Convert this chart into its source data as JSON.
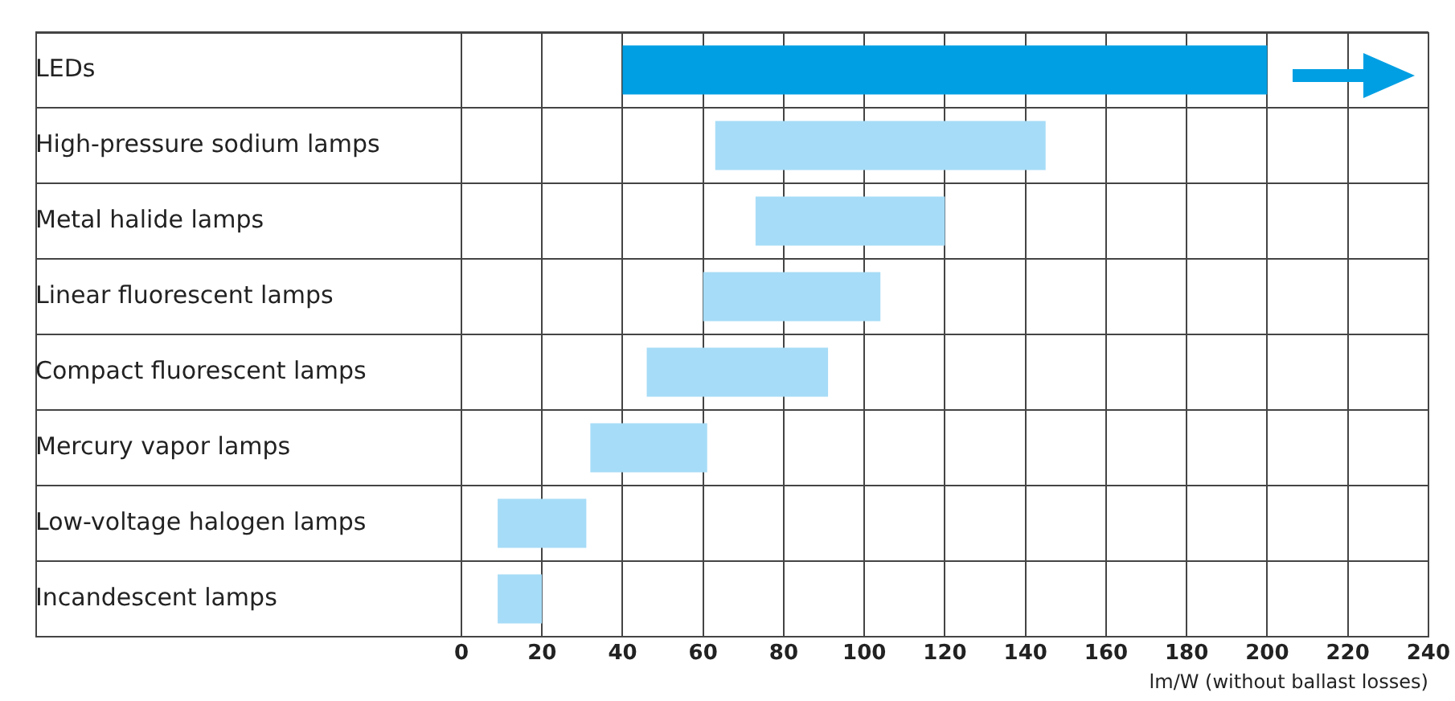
{
  "chart_data": {
    "type": "bar",
    "orientation": "horizontal",
    "xlabel": "lm/W (without ballast losses)",
    "categories": [
      "LEDs",
      "High-pressure sodium lamps",
      "Metal halide lamps",
      "Linear fluorescent lamps",
      "Compact fluorescent lamps",
      "Mercury vapor lamps",
      "Low-voltage halogen lamps",
      "Incandescent lamps"
    ],
    "base": [
      40,
      63,
      73,
      60,
      46,
      32,
      9,
      9
    ],
    "values": [
      160,
      82,
      47,
      44,
      45,
      29,
      22,
      11
    ],
    "colors": [
      "#009fe3",
      "#a6dcf7",
      "#a6dcf7",
      "#a6dcf7",
      "#a6dcf7",
      "#a6dcf7",
      "#a6dcf7",
      "#a6dcf7"
    ],
    "xlim": [
      0,
      240
    ],
    "xticks": [
      0,
      20,
      40,
      60,
      80,
      100,
      120,
      140,
      160,
      180,
      200,
      220,
      240
    ],
    "grid": true,
    "legend": false
  }
}
